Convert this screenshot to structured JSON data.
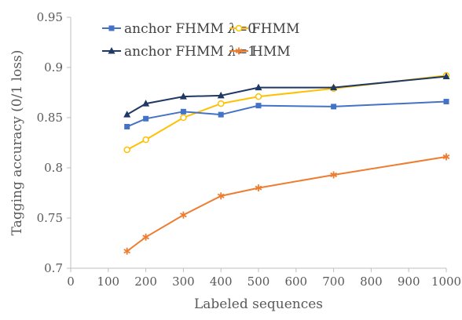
{
  "chart_data": {
    "type": "line",
    "title": "",
    "xlabel": "Labeled sequences",
    "ylabel": "Tagging accuracy (0/1 loss)",
    "xlim": [
      0,
      1000
    ],
    "ylim": [
      0.7,
      0.95
    ],
    "xticks": [
      0,
      100,
      200,
      300,
      400,
      500,
      600,
      700,
      800,
      900,
      1000
    ],
    "yticks": [
      0.7,
      0.75,
      0.8,
      0.85,
      0.9,
      0.95
    ],
    "xtick_labels": [
      "0",
      "100",
      "200",
      "300",
      "400",
      "500",
      "600",
      "700",
      "800",
      "900",
      "1000"
    ],
    "ytick_labels": [
      "0.7",
      "0.75",
      "0.8",
      "0.85",
      "0.9",
      "0.95"
    ],
    "grid": false,
    "legend_position": "top-left",
    "series": [
      {
        "name": "anchor FHMM λ=0",
        "label_prefix": "anchor FHMM ",
        "label_symbol": "λ",
        "label_suffix": "=0",
        "color": "#4472C4",
        "marker": "square",
        "x": [
          150,
          200,
          300,
          400,
          500,
          700,
          1000
        ],
        "y": [
          0.841,
          0.849,
          0.856,
          0.853,
          0.862,
          0.861,
          0.866
        ]
      },
      {
        "name": "anchor FHMM λ=1",
        "label_prefix": "anchor FHMM ",
        "label_symbol": "λ",
        "label_suffix": "=1",
        "color": "#1F3864",
        "marker": "triangle",
        "x": [
          150,
          200,
          300,
          400,
          500,
          700,
          1000
        ],
        "y": [
          0.853,
          0.864,
          0.871,
          0.872,
          0.88,
          0.88,
          0.891
        ]
      },
      {
        "name": "FHMM",
        "color": "#FFC000",
        "marker": "circle",
        "x": [
          150,
          200,
          300,
          400,
          500,
          700,
          1000
        ],
        "y": [
          0.818,
          0.828,
          0.85,
          0.864,
          0.871,
          0.879,
          0.892
        ]
      },
      {
        "name": "HMM",
        "color": "#ED7D31",
        "marker": "star",
        "x": [
          150,
          200,
          300,
          400,
          500,
          700,
          1000
        ],
        "y": [
          0.717,
          0.731,
          0.753,
          0.772,
          0.78,
          0.793,
          0.811
        ]
      }
    ]
  }
}
